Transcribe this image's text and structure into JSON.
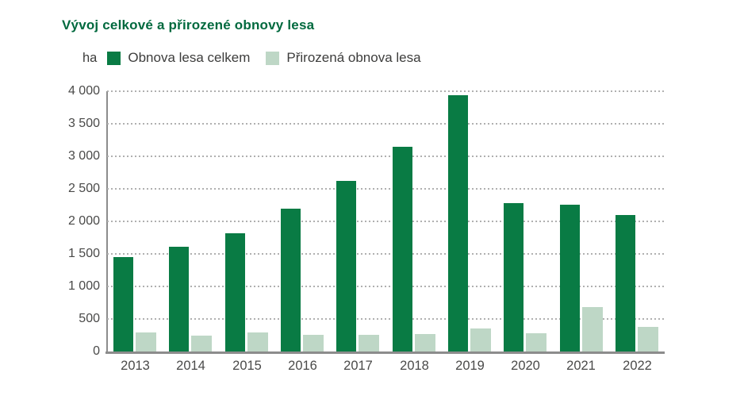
{
  "title": "Vývoj celkové a přirozené obnovy lesa",
  "unit_label": "ha",
  "legend": {
    "items": [
      {
        "label": "Obnova lesa celkem",
        "color": "#097B44"
      },
      {
        "label": "Přirozená obnova lesa",
        "color": "#BED7C6"
      }
    ]
  },
  "chart_data": {
    "type": "bar",
    "title": "Vývoj celkové a přirozené obnovy lesa",
    "ylabel": "ha",
    "xlabel": "",
    "categories": [
      "2013",
      "2014",
      "2015",
      "2016",
      "2017",
      "2018",
      "2019",
      "2020",
      "2021",
      "2022"
    ],
    "series": [
      {
        "name": "Obnova lesa celkem",
        "color": "#097B44",
        "values": [
          1450,
          1610,
          1820,
          2190,
          2620,
          3150,
          3940,
          2280,
          2250,
          2100
        ]
      },
      {
        "name": "Přirozená obnova lesa",
        "color": "#BED7C6",
        "values": [
          295,
          240,
          295,
          250,
          260,
          270,
          350,
          280,
          680,
          380
        ]
      }
    ],
    "ylim": [
      0,
      4000
    ],
    "ytick_step": 500,
    "ytick_values": [
      0,
      500,
      1000,
      1500,
      2000,
      2500,
      3000,
      3500,
      4000
    ],
    "ytick_labels": [
      "0",
      "500",
      "1 000",
      "1 500",
      "2 000",
      "2 500",
      "3 000",
      "3 500",
      "4 000"
    ],
    "grid": "horizontal-dotted",
    "legend_position": "top-left"
  },
  "colors": {
    "title": "#00693E",
    "bar_total": "#097B44",
    "bar_natural": "#BED7C6",
    "axis_line": "#8C8C8C",
    "gridline": "#B0B0B0",
    "tick_text": "#4A4A49",
    "legend_text": "#3D3D3C",
    "background": "#FFFFFF"
  }
}
